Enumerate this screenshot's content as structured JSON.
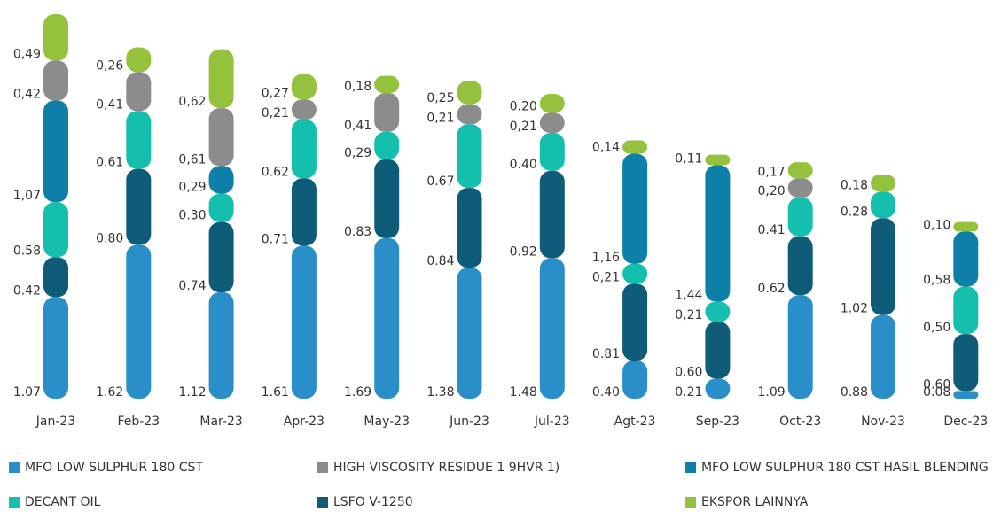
{
  "chart_data": {
    "type": "stacked-bar",
    "categories": [
      "Jan-23",
      "Feb-23",
      "Mar-23",
      "Apr-23",
      "May-23",
      "Jun-23",
      "Jul-23",
      "Agt-23",
      "Sep-23",
      "Oct-23",
      "Nov-23",
      "Dec-23"
    ],
    "series": [
      {
        "name": "MFO LOW SULPHUR 180 CST",
        "color": "#2a8fc9",
        "values": [
          1.07,
          1.62,
          1.12,
          1.61,
          1.69,
          1.38,
          1.48,
          0.4,
          0.21,
          1.09,
          0.88,
          0.08
        ],
        "value_labels": [
          "1.07",
          "1.62",
          "1.12",
          "1.61",
          "1.69",
          "1.38",
          "1.48",
          "0.40",
          "0.21",
          "1.09",
          "0.88",
          "0.08"
        ]
      },
      {
        "name": "LSFO V-1250",
        "color": "#0f5c78",
        "values": [
          0.42,
          0.8,
          0.74,
          0.71,
          0.83,
          0.84,
          0.92,
          0.81,
          0.6,
          0.62,
          1.02,
          0.6
        ],
        "value_labels": [
          "0.42",
          "0.80",
          "0.74",
          "0.71",
          "0.83",
          "0.84",
          "0.92",
          "0.81",
          "0.60",
          "0.62",
          "1.02",
          "0.60"
        ]
      },
      {
        "name": "DECANT OIL",
        "color": "#14bfae",
        "values": [
          0.58,
          0.61,
          0.3,
          0.62,
          0.29,
          0.67,
          0.4,
          0.21,
          0.21,
          0.41,
          0.28,
          0.5
        ],
        "value_labels": [
          "0.58",
          "0.61",
          "0.30",
          "0.62",
          "0,29",
          "0.67",
          "0.40",
          "0,21",
          "0,21",
          "0.41",
          "0.28",
          "0,50"
        ]
      },
      {
        "name": "MFO LOW SULPHUR 180 CST HASIL BLENDING",
        "color": "#0e7fa8",
        "values": [
          1.07,
          null,
          0.29,
          null,
          null,
          null,
          null,
          1.16,
          1.44,
          null,
          null,
          0.58
        ],
        "value_labels": [
          "1,07",
          null,
          "0,29",
          null,
          null,
          null,
          null,
          "1,16",
          "1,44",
          null,
          null,
          "0,58"
        ]
      },
      {
        "name": "HIGH VISCOSITY RESIDUE 1 9HVR 1)",
        "color": "#8c8c8c",
        "values": [
          0.42,
          0.41,
          0.61,
          0.21,
          0.41,
          0.21,
          0.21,
          null,
          null,
          0.2,
          null,
          null
        ],
        "value_labels": [
          "0,42",
          "0,41",
          "0,61",
          "0,21",
          "0,41",
          "0,21",
          "0,21",
          null,
          null,
          "0,20",
          null,
          null
        ]
      },
      {
        "name": "EKSPOR LAINNYA",
        "color": "#95c23d",
        "values": [
          0.49,
          0.26,
          0.62,
          0.27,
          0.18,
          0.25,
          0.2,
          0.14,
          0.11,
          0.17,
          0.18,
          0.1
        ],
        "value_labels": [
          "0,49",
          "0,26",
          "0,62",
          "0,27",
          "0,18",
          "0,25",
          "0.20",
          "0,14",
          "0,11",
          "0,17",
          "0,18",
          "0,10"
        ]
      }
    ]
  }
}
